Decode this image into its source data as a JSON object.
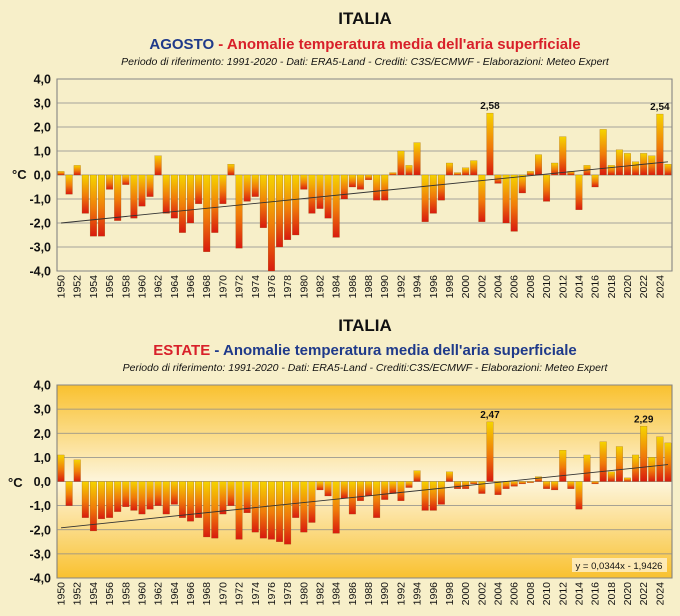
{
  "colors": {
    "page_background": "#f7efc9",
    "title_blue": "#1f3a8a",
    "title_red": "#d8202a",
    "bar_top": "#f5d400",
    "bar_bottom": "#d81a0e",
    "panel2_background_top": "#f9c12f",
    "trend_line": "#333333"
  },
  "chart_data": [
    {
      "type": "bar",
      "title": "ITALIA",
      "subtitle_part1": "AGOSTO",
      "subtitle_part2": " - Anomalie temperatura media dell'aria superficiale",
      "credits": "Periodo di riferimento: 1991-2020 - Dati: ERA5-Land - Crediti: C3S/ECMWF - Elaborazioni: Meteo Expert",
      "ylabel": "°C",
      "ylim": [
        -4,
        4
      ],
      "yticks": [
        "4,0",
        "3,0",
        "2,0",
        "1,0",
        "0,0",
        "-1,0",
        "-2,0",
        "-3,0",
        "-4,0"
      ],
      "x_start": 1950,
      "x_end": 2025,
      "xtick_labels": [
        "1950",
        "1952",
        "1954",
        "1956",
        "1958",
        "1960",
        "1962",
        "1964",
        "1966",
        "1968",
        "1970",
        "1972",
        "1974",
        "1976",
        "1978",
        "1980",
        "1982",
        "1984",
        "1986",
        "1988",
        "1990",
        "1992",
        "1994",
        "1996",
        "1998",
        "2000",
        "2002",
        "2004",
        "2006",
        "2008",
        "2010",
        "2012",
        "2014",
        "2016",
        "2018",
        "2020",
        "2022",
        "2024"
      ],
      "values": [
        0.15,
        -0.8,
        0.4,
        -1.6,
        -2.55,
        -2.55,
        -0.6,
        -1.9,
        -0.4,
        -1.8,
        -1.3,
        -0.9,
        0.8,
        -1.6,
        -1.8,
        -2.4,
        -2.0,
        -1.2,
        -3.2,
        -2.4,
        -1.2,
        0.45,
        -3.05,
        -1.1,
        -0.9,
        -2.2,
        -4.0,
        -3.0,
        -2.7,
        -2.5,
        -0.6,
        -1.6,
        -1.4,
        -1.8,
        -2.6,
        -1.0,
        -0.5,
        -0.6,
        -0.2,
        -1.05,
        -1.05,
        0.1,
        1.0,
        0.4,
        1.35,
        -1.95,
        -1.6,
        -1.05,
        0.5,
        0.1,
        0.3,
        0.6,
        -1.95,
        2.58,
        -0.35,
        -2.0,
        -2.35,
        -0.75,
        0.15,
        0.85,
        -1.1,
        0.5,
        1.6,
        0.15,
        -1.45,
        0.4,
        -0.5,
        1.9,
        0.4,
        1.05,
        0.9,
        0.55,
        0.9,
        0.8,
        2.54,
        0.45
      ],
      "data_labels": [
        {
          "year": 2003,
          "text": "2,58"
        },
        {
          "year": 2024,
          "text": "2,54"
        }
      ],
      "trend_line": {
        "from_year": 1950,
        "from_value": -2.0,
        "to_year": 2025,
        "to_value": 0.55
      }
    },
    {
      "type": "bar",
      "title": "ITALIA",
      "subtitle_part1": "ESTATE",
      "subtitle_part2": " - Anomalie temperatura media dell'aria superficiale",
      "credits": "Periodo di riferimento: 1991-2020 - Dati: ERA5-Land - Crediti:C3S/ECMWF - Elaborazioni: Meteo Expert",
      "ylabel": "°C",
      "ylim": [
        -4,
        4
      ],
      "yticks": [
        "4,0",
        "3,0",
        "2,0",
        "1,0",
        "0,0",
        "-1,0",
        "-2,0",
        "-3,0",
        "-4,0"
      ],
      "x_start": 1950,
      "x_end": 2025,
      "xtick_labels": [
        "1950",
        "1952",
        "1954",
        "1956",
        "1958",
        "1960",
        "1962",
        "1964",
        "1966",
        "1968",
        "1970",
        "1972",
        "1974",
        "1976",
        "1978",
        "1980",
        "1982",
        "1984",
        "1986",
        "1988",
        "1990",
        "1992",
        "1994",
        "1996",
        "1998",
        "2000",
        "2002",
        "2004",
        "2006",
        "2008",
        "2010",
        "2012",
        "2014",
        "2016",
        "2018",
        "2020",
        "2022",
        "2024"
      ],
      "values": [
        1.1,
        -1.0,
        0.9,
        -1.5,
        -2.05,
        -1.55,
        -1.5,
        -1.25,
        -1.05,
        -1.2,
        -1.35,
        -1.15,
        -1.0,
        -1.35,
        -0.95,
        -1.5,
        -1.65,
        -1.5,
        -2.3,
        -2.35,
        -1.35,
        -1.0,
        -2.4,
        -1.3,
        -2.1,
        -2.35,
        -2.4,
        -2.5,
        -2.6,
        -1.5,
        -2.1,
        -1.7,
        -0.35,
        -0.6,
        -2.15,
        -0.7,
        -1.35,
        -0.8,
        -0.6,
        -1.5,
        -0.75,
        -0.5,
        -0.8,
        -0.25,
        0.45,
        -1.2,
        -1.2,
        -0.95,
        0.4,
        -0.3,
        -0.3,
        -0.1,
        -0.5,
        2.47,
        -0.55,
        -0.3,
        -0.2,
        -0.1,
        -0.05,
        0.2,
        -0.3,
        -0.35,
        1.3,
        -0.3,
        -1.15,
        1.1,
        -0.1,
        1.65,
        0.4,
        1.45,
        0.15,
        1.1,
        2.29,
        1.0,
        1.85,
        1.6
      ],
      "data_labels": [
        {
          "year": 2003,
          "text": "2,47"
        },
        {
          "year": 2022,
          "text": "2,29"
        }
      ],
      "trend_line": {
        "from_year": 1950,
        "from_value": -1.92,
        "to_year": 2025,
        "to_value": 0.7
      },
      "equation": "y = 0,0344x - 1,9426"
    }
  ]
}
